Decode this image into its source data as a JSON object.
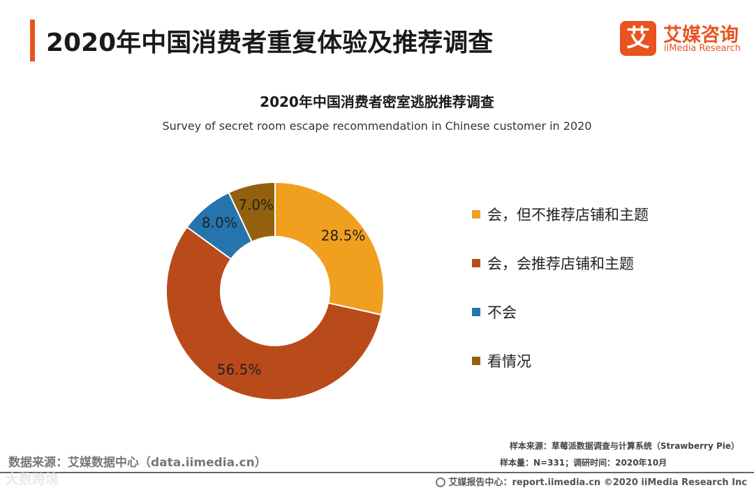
{
  "header": {
    "title": "2020年中国消费者重复体验及推荐调查"
  },
  "logo": {
    "mark": "艾",
    "name_cn": "艾媒咨询",
    "name_en": "iiMedia Research"
  },
  "chart_data": {
    "type": "pie",
    "donut": true,
    "title": "2020年中国消费者密室逃脱推荐调查",
    "subtitle": "Survey of secret room escape recommendation in Chinese customer in 2020",
    "unit": "%",
    "categories": [
      "会，但不推荐店铺和主题",
      "会，会推荐店铺和主题",
      "不会",
      "看情况"
    ],
    "values": [
      28.5,
      56.5,
      8.0,
      7.0
    ],
    "labels": [
      "28.5%",
      "56.5%",
      "8.0%",
      "7.0%"
    ],
    "colors": [
      "#f0a01e",
      "#b94a1a",
      "#2574ad",
      "#93610e"
    ],
    "legend_position": "right"
  },
  "footer": {
    "data_source": "数据来源：艾媒数据中心（data.iimedia.cn）",
    "sample_source": "样本来源：草莓派数据调查与计算系统（Strawberry Pie）",
    "sample_size": "样本量：N=331；调研时间：2020年10月",
    "copyright": "艾媒报告中心：report.iimedia.cn ©2020 iiMedia Research Inc",
    "watermark": "大数跨境"
  }
}
